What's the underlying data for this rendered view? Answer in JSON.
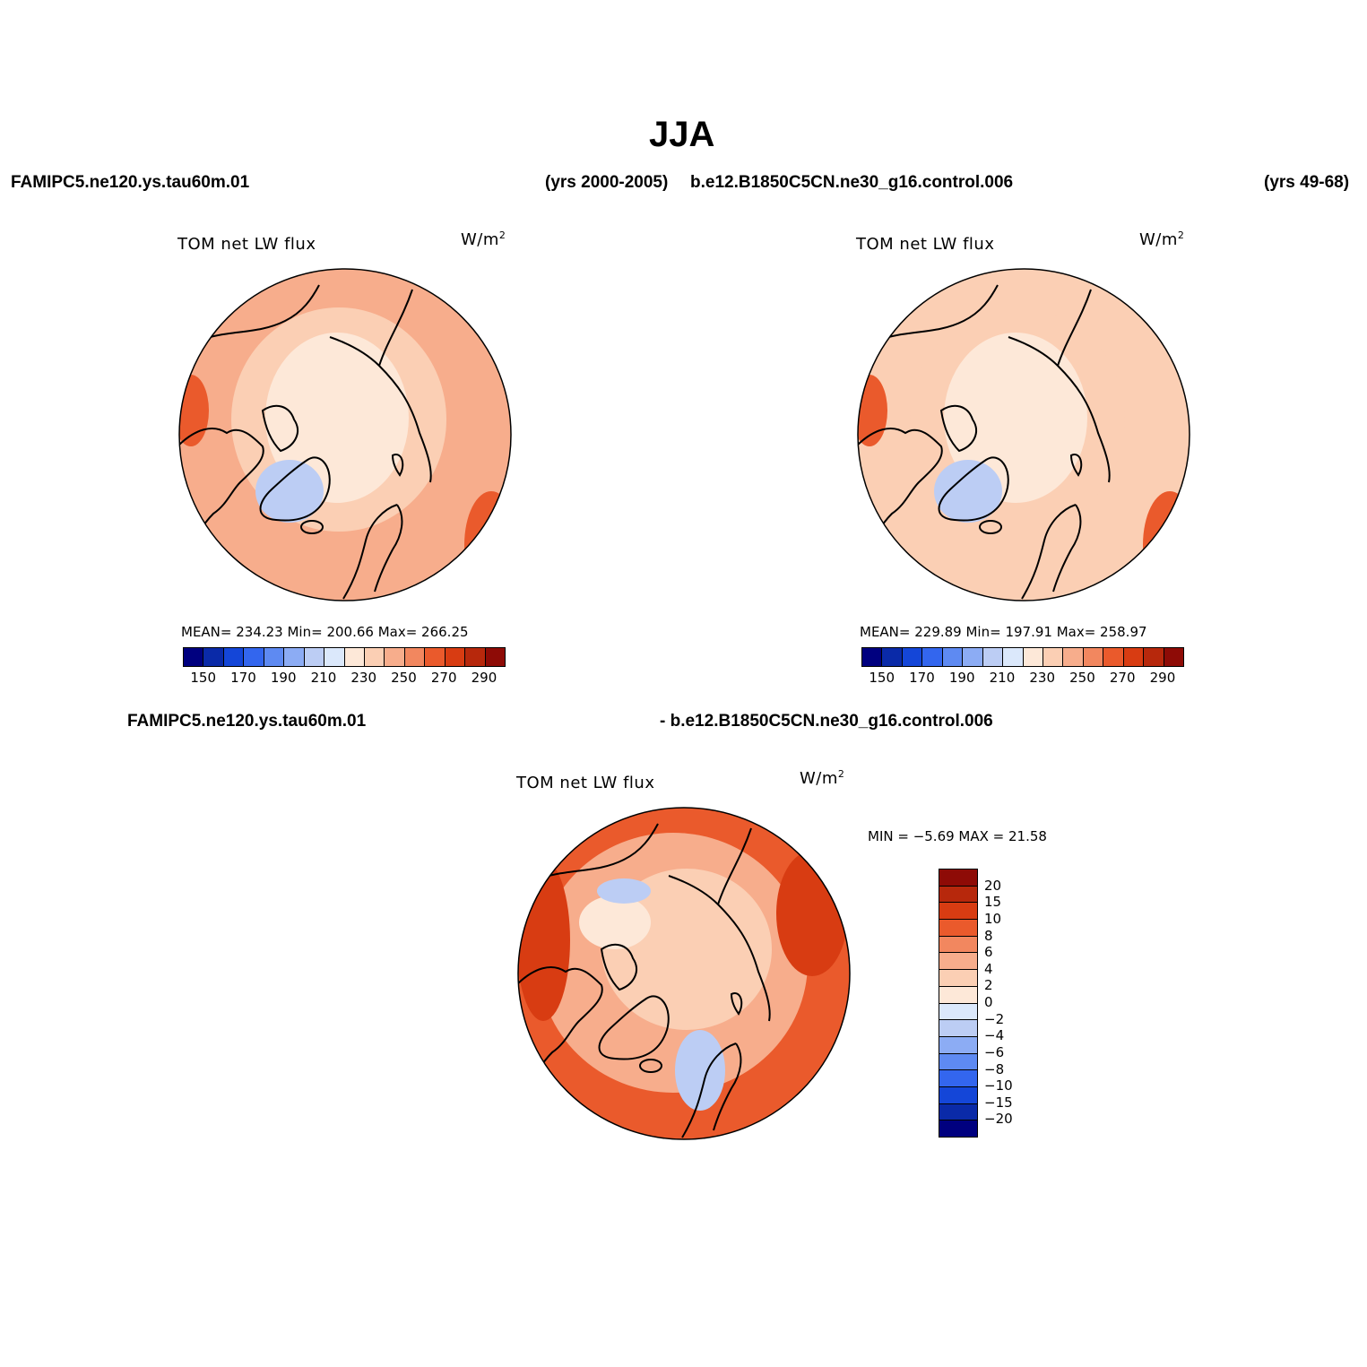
{
  "season_title": "JJA",
  "header": {
    "case1_name": "FAMIPC5.ne120.ys.tau60m.01",
    "case1_years": "(yrs 2000-2005)",
    "case2_name": "b.e12.B1850C5CN.ne30_g16.control.006",
    "case2_years": "(yrs 49-68)"
  },
  "diff_header": {
    "left": "FAMIPC5.ne120.ys.tau60m.01",
    "right": "- b.e12.B1850C5CN.ne30_g16.control.006"
  },
  "panels": [
    {
      "variable": "TOM  net  LW  flux",
      "units_base": "W/m",
      "units_exp": "2",
      "stats": "MEAN=  234.23    Min=  200.66    Max=  266.25",
      "colorbar_ticks": [
        "150",
        "170",
        "190",
        "210",
        "230",
        "250",
        "270",
        "290"
      ]
    },
    {
      "variable": "TOM  net  LW  flux",
      "units_base": "W/m",
      "units_exp": "2",
      "stats": "MEAN=  229.89    Min=  197.91    Max=  258.97",
      "colorbar_ticks": [
        "150",
        "170",
        "190",
        "210",
        "230",
        "250",
        "270",
        "290"
      ]
    },
    {
      "variable": "TOM  net  LW  flux",
      "units_base": "W/m",
      "units_exp": "2",
      "stats": "MIN =   −5.69  MAX =   21.58",
      "colorbar_ticks": [
        "20",
        "15",
        "10",
        "8",
        "6",
        "4",
        "2",
        "0",
        "−2",
        "−4",
        "−6",
        "−8",
        "−10",
        "−15",
        "−20"
      ]
    }
  ],
  "colors": {
    "abs_scale": [
      "#00007f",
      "#0a2aa8",
      "#1446d8",
      "#3366ee",
      "#5e8af2",
      "#8cacf4",
      "#bccdf4",
      "#dbe8fb",
      "#fde8d8",
      "#fbcfb4",
      "#f7ad8c",
      "#f2875f",
      "#ea5a2c",
      "#d83c12",
      "#b7280c",
      "#8e0b06"
    ],
    "diff_scale": [
      "#8e0b06",
      "#b7280c",
      "#d83c12",
      "#ea5a2c",
      "#f2875f",
      "#f7ad8c",
      "#fbcfb4",
      "#fde8d8",
      "#dbe8fb",
      "#bccdf4",
      "#8cacf4",
      "#5e8af2",
      "#3366ee",
      "#1446d8",
      "#0a2aa8",
      "#00007f"
    ],
    "ocean_light": "#fbcfb4",
    "arctic": "#fde8d8",
    "warm": "#f7ad8c",
    "hot": "#ea5a2c",
    "ice": "#bccdf4"
  }
}
